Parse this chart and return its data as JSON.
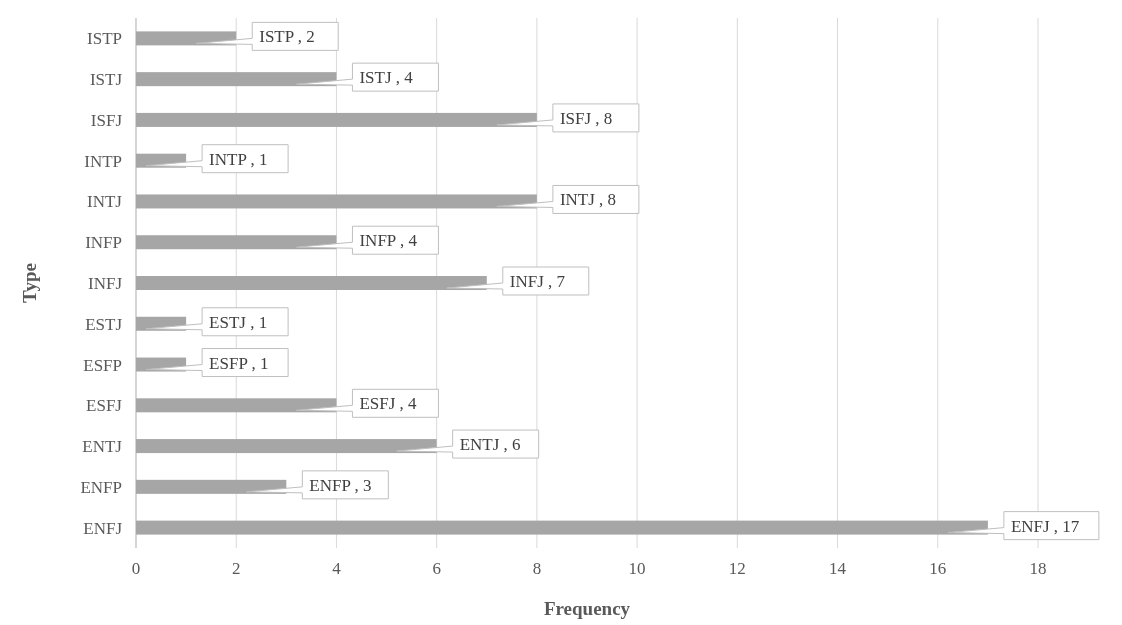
{
  "chart_data": {
    "type": "bar",
    "orientation": "horizontal",
    "xlabel": "Frequency",
    "ylabel": "Type",
    "categories": [
      "ISTP",
      "ISTJ",
      "ISFJ",
      "INTP",
      "INTJ",
      "INFP",
      "INFJ",
      "ESTJ",
      "ESFP",
      "ESFJ",
      "ENTJ",
      "ENFP",
      "ENFJ"
    ],
    "values": [
      2,
      4,
      8,
      1,
      8,
      4,
      7,
      1,
      1,
      4,
      6,
      3,
      17
    ],
    "value_labels": [
      "ISTP , 2",
      "ISTJ , 4",
      "ISFJ , 8",
      "INTP , 1",
      "INTJ , 8",
      "INFP , 4",
      "INFJ , 7",
      "ESTJ , 1",
      "ESFP , 1",
      "ESFJ , 4",
      "ENTJ , 6",
      "ENFP , 3",
      "ENFJ , 17"
    ],
    "color": "#a6a6a6",
    "xlim": [
      0,
      18
    ],
    "xticks": [
      0,
      2,
      4,
      6,
      8,
      10,
      12,
      14,
      16,
      18
    ],
    "grid": "x"
  }
}
